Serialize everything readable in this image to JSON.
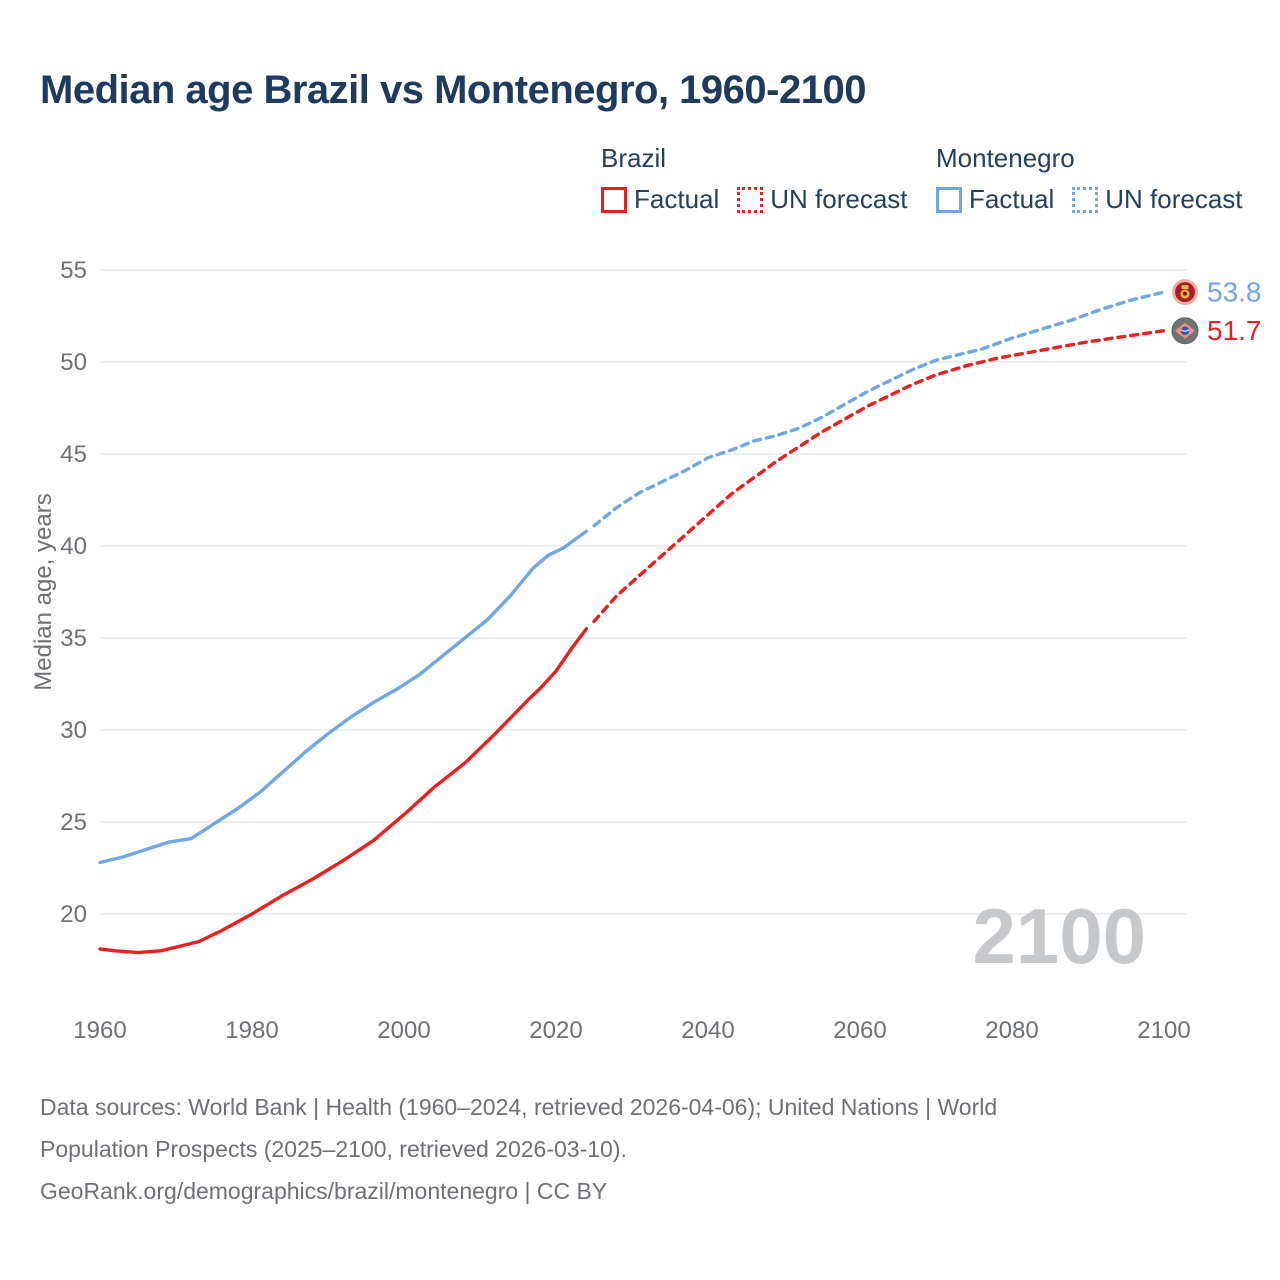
{
  "title": "Median age Brazil vs Montenegro, 1960-2100",
  "colors": {
    "brazil": "#e8201f",
    "montenegro": "#70a6e3",
    "title_navy": "#1e3a5c",
    "axis_gray": "#6d7074",
    "gridline": "#e9eaeb",
    "watermark": "#c6c9cb",
    "footer_gray": "#6d7074"
  },
  "legend": {
    "groups": [
      {
        "title": "Brazil",
        "items": [
          {
            "label": "Factual",
            "style": "solid"
          },
          {
            "label": "UN forecast",
            "style": "dotted"
          }
        ]
      },
      {
        "title": "Montenegro",
        "items": [
          {
            "label": "Factual",
            "style": "solid"
          },
          {
            "label": "UN forecast",
            "style": "dotted"
          }
        ]
      }
    ]
  },
  "chart_data": {
    "type": "line",
    "title": "Median age Brazil vs Montenegro, 1960-2100",
    "xlabel": "",
    "ylabel": "Median age, years",
    "xlim": [
      1960,
      2100
    ],
    "ylim": [
      20,
      55
    ],
    "x_ticks": [
      1960,
      1980,
      2000,
      2020,
      2040,
      2060,
      2080,
      2100
    ],
    "y_ticks": [
      20,
      25,
      30,
      35,
      40,
      45,
      50,
      55
    ],
    "grid": "horizontal",
    "legend_position": "top-right",
    "watermark": "2100",
    "series": [
      {
        "name": "Brazil Factual",
        "color": "#e8201f",
        "style": "solid",
        "x": [
          1960,
          1962,
          1965,
          1968,
          1970,
          1973,
          1976,
          1980,
          1984,
          1988,
          1992,
          1996,
          2000,
          2004,
          2008,
          2012,
          2016,
          2018,
          2020,
          2022,
          2024
        ],
        "y": [
          18.1,
          18.0,
          17.9,
          18.0,
          18.2,
          18.5,
          19.1,
          20.0,
          21.0,
          21.9,
          22.9,
          24.0,
          25.4,
          26.9,
          28.2,
          29.8,
          31.5,
          32.3,
          33.2,
          34.4,
          35.5
        ]
      },
      {
        "name": "Brazil UN forecast",
        "color": "#e8201f",
        "style": "dashed",
        "x": [
          2025,
          2028,
          2031,
          2034,
          2037,
          2040,
          2043,
          2046,
          2049,
          2052,
          2055,
          2058,
          2061,
          2064,
          2067,
          2070,
          2074,
          2078,
          2082,
          2086,
          2090,
          2095,
          2100
        ],
        "y": [
          35.9,
          37.3,
          38.4,
          39.5,
          40.6,
          41.7,
          42.8,
          43.7,
          44.6,
          45.4,
          46.2,
          46.9,
          47.6,
          48.2,
          48.8,
          49.3,
          49.8,
          50.2,
          50.5,
          50.8,
          51.1,
          51.4,
          51.7
        ]
      },
      {
        "name": "Montenegro Factual",
        "color": "#70a6e3",
        "style": "solid",
        "x": [
          1960,
          1963,
          1966,
          1969,
          1972,
          1975,
          1978,
          1981,
          1984,
          1987,
          1990,
          1993,
          1996,
          1999,
          2002,
          2005,
          2008,
          2011,
          2014,
          2017,
          2019,
          2021,
          2024
        ],
        "y": [
          22.8,
          23.1,
          23.5,
          23.9,
          24.1,
          24.9,
          25.7,
          26.6,
          27.7,
          28.8,
          29.8,
          30.7,
          31.5,
          32.2,
          33.0,
          34.0,
          35.0,
          36.0,
          37.3,
          38.8,
          39.5,
          39.9,
          40.8
        ]
      },
      {
        "name": "Montenegro UN forecast",
        "color": "#70a6e3",
        "style": "dashed",
        "x": [
          2025,
          2028,
          2031,
          2034,
          2037,
          2040,
          2043,
          2046,
          2049,
          2052,
          2055,
          2058,
          2061,
          2064,
          2067,
          2070,
          2073,
          2076,
          2080,
          2084,
          2088,
          2092,
          2096,
          2100
        ],
        "y": [
          41.1,
          42.1,
          42.9,
          43.5,
          44.1,
          44.8,
          45.2,
          45.7,
          46.0,
          46.4,
          47.0,
          47.7,
          48.4,
          49.0,
          49.6,
          50.1,
          50.4,
          50.7,
          51.3,
          51.8,
          52.3,
          52.9,
          53.4,
          53.8
        ]
      }
    ],
    "end_labels": [
      {
        "text": "53.8",
        "value": 53.8,
        "flag": "montenegro",
        "color": "#70a6e3"
      },
      {
        "text": "51.7",
        "value": 51.7,
        "flag": "brazil",
        "color": "#e8201f"
      }
    ]
  },
  "footer": {
    "line1": "Data sources: World Bank | Health (1960–2024, retrieved 2026-04-06); United Nations | World",
    "line2": "Population Prospects (2025–2100, retrieved 2026-03-10).",
    "line3": "GeoRank.org/demographics/brazil/montenegro | CC BY"
  }
}
